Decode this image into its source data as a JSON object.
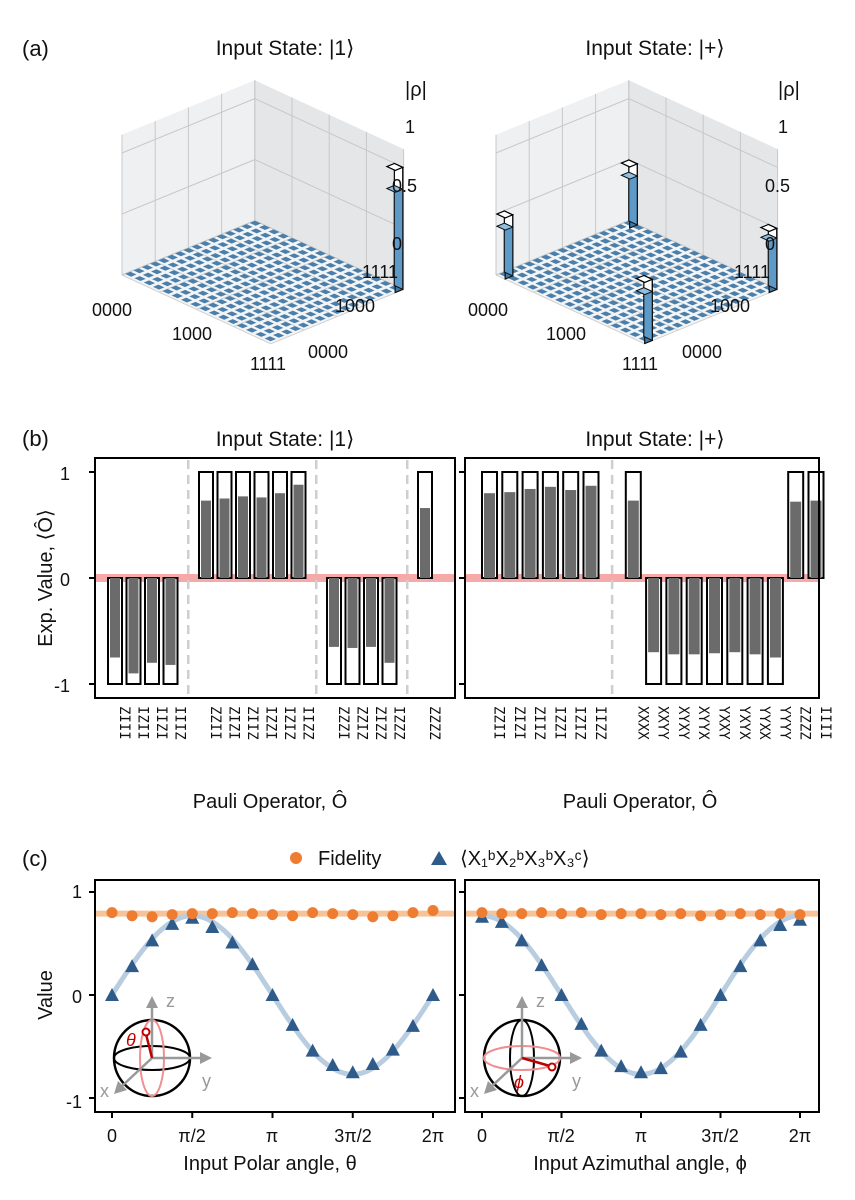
{
  "panels": {
    "a": {
      "label": "(a)",
      "titles": [
        "Input State: |1⟩",
        "Input State: |+⟩"
      ],
      "zlabel": "|ρ|",
      "zticks": [
        "1",
        "0.5",
        "0"
      ],
      "basis_ticks_front": [
        "0000",
        "1000",
        "1111"
      ],
      "basis_ticks_side": [
        "1111",
        "1000",
        "0000"
      ]
    },
    "b": {
      "label": "(b)",
      "titles": [
        "Input State: |1⟩",
        "Input State: |+⟩"
      ],
      "ylabel": "Exp. Value, ⟨Ô⟩",
      "xlabel": "Pauli Operator, Ô",
      "yticks": [
        "1",
        "0",
        "-1"
      ]
    },
    "c": {
      "label": "(c)",
      "legend": {
        "fidelity": "Fidelity",
        "observable": "⟨X₁ᵇX₂ᵇX₃ᵇX₃ᶜ⟩"
      },
      "ylabel": "Value",
      "yticks": [
        "1",
        "0",
        "-1"
      ],
      "xticks": [
        "0",
        "π/2",
        "π",
        "3π/2",
        "2π"
      ],
      "xlabel_left": "Input Polar angle, θ",
      "xlabel_right": "Input Azimuthal angle, ϕ",
      "bloch_left": {
        "z": "z",
        "x": "x",
        "y": "y",
        "angle": "θ"
      },
      "bloch_right": {
        "z": "z",
        "x": "x",
        "y": "y",
        "angle": "ϕ"
      }
    }
  },
  "colors": {
    "bar_measured": "#6b6b6b",
    "bar_ideal_edge": "#000000",
    "zero_band": "#f4a0a0",
    "fidelity": "#ee7d32",
    "fidelity_band": "#f7c49a",
    "observable": "#2f5b8a",
    "observable_band": "#b9cde0",
    "bar3d": "#4a7fab"
  },
  "chart_data": [
    {
      "type": "bar3d",
      "panel": "a-left",
      "title": "Input State: |1⟩",
      "zlabel": "|ρ|",
      "zlim": [
        0,
        1
      ],
      "peaks": [
        {
          "row": "1111",
          "col": "1111",
          "value": 0.82,
          "ideal": 1.0
        }
      ]
    },
    {
      "type": "bar3d",
      "panel": "a-right",
      "title": "Input State: |+⟩",
      "zlabel": "|ρ|",
      "zlim": [
        0,
        1
      ],
      "peaks": [
        {
          "row": "0000",
          "col": "0000",
          "value": 0.4,
          "ideal": 0.5
        },
        {
          "row": "0000",
          "col": "1111",
          "value": 0.4,
          "ideal": 0.5
        },
        {
          "row": "1111",
          "col": "0000",
          "value": 0.4,
          "ideal": 0.5
        },
        {
          "row": "1111",
          "col": "1111",
          "value": 0.42,
          "ideal": 0.5
        }
      ]
    },
    {
      "type": "bar",
      "panel": "b-left",
      "title": "Input State: |1⟩",
      "ylim": [
        -1.15,
        1.15
      ],
      "groups": [
        4,
        6,
        4,
        1
      ],
      "categories": [
        "ZIII",
        "IZII",
        "IIZI",
        "IIIZ",
        "ZZII",
        "ZIZI",
        "ZIIZ",
        "IZZI",
        "IZIZ",
        "IIZZ",
        "ZZZI",
        "ZZIZ",
        "ZIZZ",
        "IZZZ",
        "ZZZZ"
      ],
      "series": [
        {
          "name": "ideal",
          "values": [
            -1,
            -1,
            -1,
            -1,
            1,
            1,
            1,
            1,
            1,
            1,
            -1,
            -1,
            -1,
            -1,
            1
          ]
        },
        {
          "name": "measured",
          "values": [
            -0.75,
            -0.9,
            -0.8,
            -0.82,
            0.73,
            0.75,
            0.77,
            0.76,
            0.8,
            0.88,
            -0.65,
            -0.66,
            -0.65,
            -0.8,
            0.66
          ]
        }
      ]
    },
    {
      "type": "bar",
      "panel": "b-right",
      "title": "Input State: |+⟩",
      "ylim": [
        -1.15,
        1.15
      ],
      "groups": [
        6,
        10
      ],
      "categories": [
        "ZZII",
        "ZIZI",
        "ZIIZ",
        "IZZI",
        "IZIZ",
        "IIZZ",
        "XXXX",
        "XXYY",
        "XYXY",
        "XYYX",
        "YXXY",
        "YXYX",
        "YYXX",
        "YYYY",
        "ZZZZ",
        "IIII"
      ],
      "series": [
        {
          "name": "ideal",
          "values": [
            1,
            1,
            1,
            1,
            1,
            1,
            1,
            -1,
            -1,
            -1,
            -1,
            -1,
            -1,
            -1,
            1,
            1
          ]
        },
        {
          "name": "measured",
          "values": [
            0.8,
            0.81,
            0.84,
            0.86,
            0.83,
            0.87,
            0.73,
            -0.7,
            -0.72,
            -0.72,
            -0.71,
            -0.7,
            -0.72,
            -0.75,
            0.72,
            0.73
          ]
        }
      ]
    },
    {
      "type": "scatter",
      "panel": "c-left",
      "xlabel": "Input Polar angle, θ",
      "ylabel": "Value",
      "x_unit": "pi",
      "xlim": [
        -0.05,
        2.1
      ],
      "ylim": [
        -1.1,
        1.1
      ],
      "series": [
        {
          "name": "Fidelity",
          "x": [
            0,
            0.125,
            0.25,
            0.375,
            0.5,
            0.625,
            0.75,
            0.875,
            1.0,
            1.125,
            1.25,
            1.375,
            1.5,
            1.625,
            1.75,
            1.875,
            2.0
          ],
          "values": [
            0.8,
            0.77,
            0.76,
            0.78,
            0.79,
            0.79,
            0.8,
            0.79,
            0.78,
            0.77,
            0.8,
            0.79,
            0.78,
            0.76,
            0.77,
            0.8,
            0.82
          ],
          "fit": 0.79
        },
        {
          "name": "⟨X₁ᵇX₂ᵇX₃ᵇX₃ᶜ⟩",
          "x": [
            0,
            0.125,
            0.25,
            0.375,
            0.5,
            0.625,
            0.75,
            0.875,
            1.0,
            1.125,
            1.25,
            1.375,
            1.5,
            1.625,
            1.75,
            1.875,
            2.0
          ],
          "values": [
            0.0,
            0.28,
            0.53,
            0.69,
            0.75,
            0.66,
            0.51,
            0.3,
            0.0,
            -0.29,
            -0.54,
            -0.68,
            -0.75,
            -0.67,
            -0.53,
            -0.3,
            0.0
          ],
          "fit_amplitude": 0.77
        }
      ]
    },
    {
      "type": "scatter",
      "panel": "c-right",
      "xlabel": "Input Azimuthal angle, ϕ",
      "ylabel": "Value",
      "x_unit": "pi",
      "xlim": [
        -0.05,
        2.1
      ],
      "ylim": [
        -1.1,
        1.1
      ],
      "series": [
        {
          "name": "Fidelity",
          "x": [
            0,
            0.125,
            0.25,
            0.375,
            0.5,
            0.625,
            0.75,
            0.875,
            1.0,
            1.125,
            1.25,
            1.375,
            1.5,
            1.625,
            1.75,
            1.875,
            2.0
          ],
          "values": [
            0.8,
            0.79,
            0.79,
            0.8,
            0.79,
            0.8,
            0.78,
            0.79,
            0.79,
            0.78,
            0.79,
            0.77,
            0.78,
            0.79,
            0.78,
            0.79,
            0.78
          ],
          "fit": 0.79
        },
        {
          "name": "⟨X₁ᵇX₂ᵇX₃ᵇX₃ᶜ⟩",
          "x": [
            0,
            0.125,
            0.25,
            0.375,
            0.5,
            0.625,
            0.75,
            0.875,
            1.0,
            1.125,
            1.25,
            1.375,
            1.5,
            1.625,
            1.75,
            1.875,
            2.0
          ],
          "values": [
            0.76,
            0.71,
            0.53,
            0.29,
            0.0,
            -0.28,
            -0.54,
            -0.69,
            -0.75,
            -0.71,
            -0.55,
            -0.29,
            0.0,
            0.28,
            0.53,
            0.68,
            0.73
          ],
          "fit_amplitude": 0.77
        }
      ]
    }
  ]
}
